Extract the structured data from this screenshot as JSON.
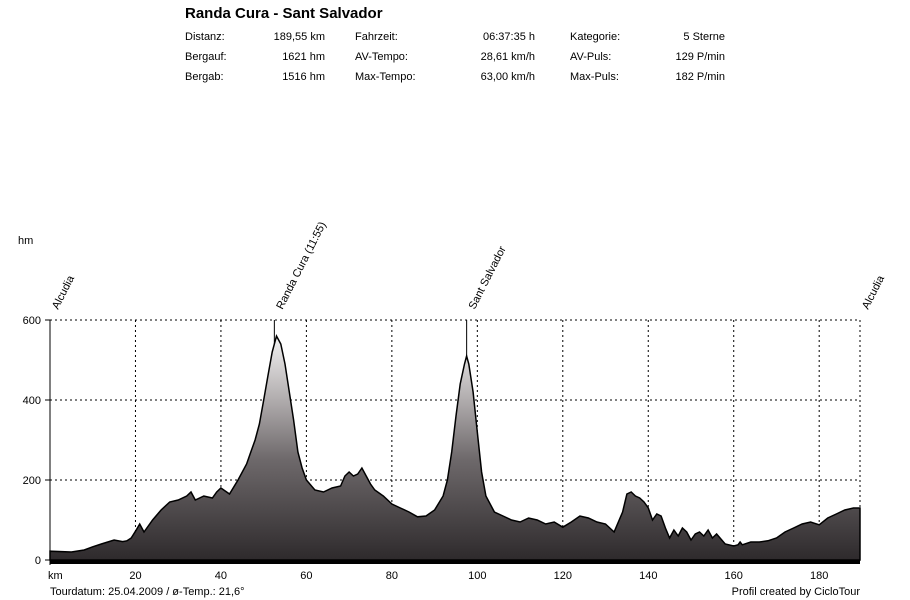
{
  "title": "Randa Cura - Sant Salvador",
  "stats": [
    {
      "label": "Distanz:",
      "value": "189,55 km"
    },
    {
      "label": "Fahrzeit:",
      "value": "06:37:35 h"
    },
    {
      "label": "Kategorie:",
      "value": "5 Sterne"
    },
    {
      "label": "Bergauf:",
      "value": "1621 hm"
    },
    {
      "label": "AV-Tempo:",
      "value": "28,61 km/h"
    },
    {
      "label": "AV-Puls:",
      "value": "129 P/min"
    },
    {
      "label": "Bergab:",
      "value": "1516 hm"
    },
    {
      "label": "Max-Tempo:",
      "value": "63,00 km/h"
    },
    {
      "label": "Max-Puls:",
      "value": "182 P/min"
    }
  ],
  "footer": {
    "left": "Tourdatum: 25.04.2009  /  ø-Temp.: 21,6°",
    "right": "Profil created by CicloTour"
  },
  "colors": {
    "fill_top": "#f2f2f2",
    "fill_bottom": "#2e2a2c",
    "grid": "#000000"
  },
  "chart_data": {
    "type": "area",
    "ylabel": "hm",
    "xlabel": "km",
    "xlim": [
      0,
      189.55
    ],
    "ylim": [
      0,
      600
    ],
    "x_ticks": [
      20,
      40,
      60,
      80,
      100,
      120,
      140,
      160,
      180
    ],
    "y_ticks": [
      0,
      200,
      400,
      600
    ],
    "grid": true,
    "waypoints": [
      {
        "name": "Alcudia",
        "km": 0
      },
      {
        "name": "Randa Cura (11:55)",
        "km": 52.5
      },
      {
        "name": "Sant Salvador",
        "km": 97.5
      },
      {
        "name": "Alcudia",
        "km": 189.55
      }
    ],
    "series": [
      {
        "x": [
          0,
          5,
          8,
          10,
          12,
          15,
          17,
          18,
          19,
          20,
          21,
          22,
          24,
          26,
          28,
          30,
          32,
          33,
          34,
          36,
          38,
          39,
          40,
          42,
          44,
          46,
          47,
          48,
          49,
          50,
          51,
          52,
          53,
          54,
          55,
          56,
          57,
          58,
          59,
          60,
          62,
          64,
          66,
          68,
          69,
          70,
          71,
          72,
          73,
          74,
          75,
          76,
          78,
          80,
          82,
          84,
          86,
          88,
          90,
          92,
          93,
          94,
          95,
          96,
          97,
          97.5,
          98,
          99,
          100,
          101,
          102,
          104,
          106,
          108,
          110,
          112,
          114,
          116,
          118,
          120,
          122,
          124,
          126,
          128,
          130,
          132,
          134,
          135,
          136,
          137,
          138,
          139,
          140,
          141,
          142,
          143,
          144,
          145,
          146,
          147,
          148,
          149,
          150,
          151,
          152,
          153,
          154,
          155,
          156,
          158,
          160,
          161,
          161.5,
          162,
          164,
          166,
          168,
          170,
          172,
          174,
          176,
          178,
          180,
          182,
          184,
          186,
          188,
          189.55
        ],
        "y": [
          22,
          20,
          25,
          33,
          40,
          50,
          46,
          48,
          55,
          72,
          90,
          70,
          100,
          125,
          145,
          150,
          160,
          170,
          150,
          160,
          155,
          170,
          180,
          165,
          200,
          240,
          270,
          300,
          340,
          400,
          460,
          520,
          560,
          540,
          490,
          420,
          350,
          270,
          230,
          200,
          175,
          170,
          180,
          185,
          210,
          220,
          210,
          215,
          230,
          210,
          190,
          175,
          160,
          140,
          130,
          120,
          108,
          110,
          125,
          160,
          200,
          270,
          360,
          440,
          490,
          510,
          490,
          420,
          320,
          220,
          160,
          120,
          110,
          100,
          95,
          105,
          100,
          90,
          95,
          82,
          95,
          110,
          105,
          95,
          90,
          70,
          120,
          165,
          170,
          160,
          155,
          145,
          130,
          100,
          115,
          110,
          80,
          55,
          75,
          60,
          80,
          70,
          50,
          65,
          70,
          60,
          75,
          55,
          65,
          40,
          35,
          38,
          45,
          38,
          45,
          45,
          48,
          55,
          70,
          80,
          90,
          95,
          88,
          105,
          115,
          125,
          130,
          130
        ]
      }
    ]
  }
}
